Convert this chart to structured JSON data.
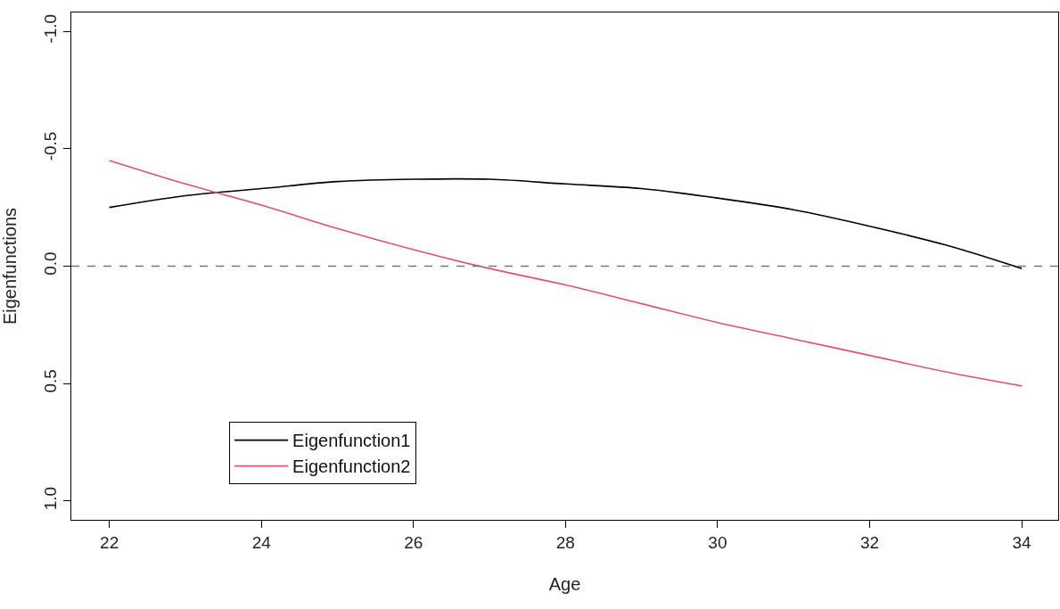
{
  "chart_data": {
    "type": "line",
    "xlabel": "Age",
    "ylabel": "Eigenfunctions",
    "x": [
      22,
      23,
      24,
      25,
      26,
      27,
      28,
      29,
      30,
      31,
      32,
      33,
      34
    ],
    "series": [
      {
        "name": "Eigenfunction1",
        "color": "#000000",
        "values": [
          -0.25,
          -0.3,
          -0.33,
          -0.36,
          -0.37,
          -0.37,
          -0.35,
          -0.33,
          -0.29,
          -0.24,
          -0.17,
          -0.09,
          0.01
        ]
      },
      {
        "name": "Eigenfunction2",
        "color": "#df536b",
        "values": [
          -0.45,
          -0.35,
          -0.26,
          -0.16,
          -0.07,
          0.01,
          0.08,
          0.16,
          0.24,
          0.31,
          0.38,
          0.45,
          0.51
        ]
      }
    ],
    "xlim": [
      21.5,
      34.48
    ],
    "xticks": [
      22,
      24,
      26,
      28,
      30,
      32,
      34
    ],
    "ylim": [
      1.08,
      -1.08
    ],
    "yticks": [
      {
        "value": 1,
        "label": "1.0"
      },
      0.5,
      {
        "value": 0,
        "label": "0.0"
      },
      -0.5,
      {
        "value": -1,
        "label": "-1.0"
      }
    ],
    "ref_lines": [
      {
        "axis": "y",
        "value": 0,
        "color": "#777777",
        "line_style": "dashed"
      }
    ],
    "legend": "bottom left",
    "marker": "none",
    "line_style": "solid"
  }
}
